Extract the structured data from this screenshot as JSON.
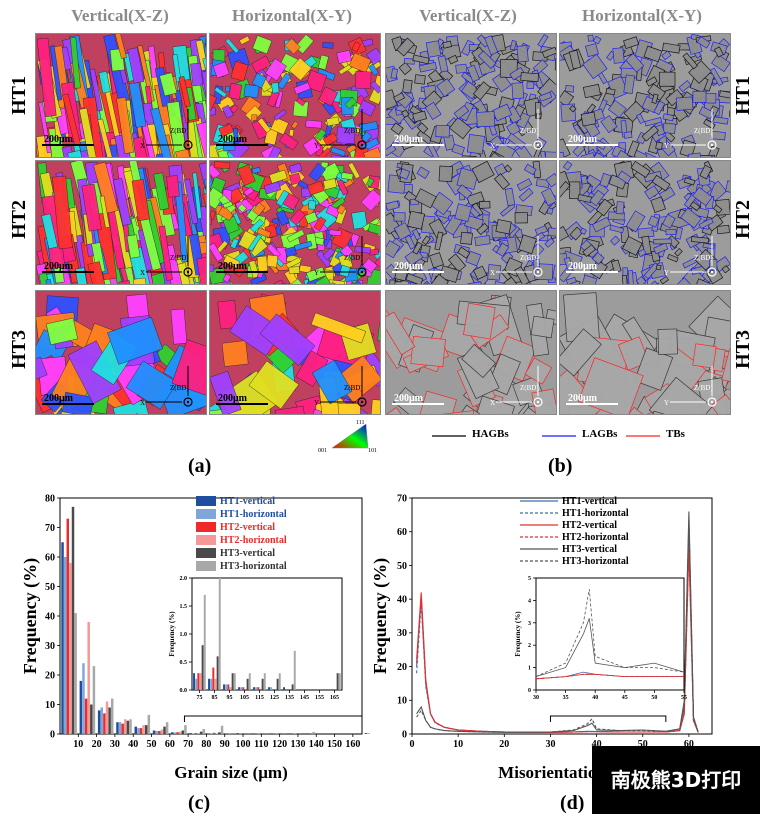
{
  "figure": {
    "col_titles": [
      "Vertical(X-Z)",
      "Horizontal(X-Y)",
      "Vertical(X-Z)",
      "Horizontal(X-Y)"
    ],
    "row_labels": [
      "HT1",
      "HT2",
      "HT3"
    ],
    "scale_bar": "200μm",
    "axis_tag": "Z(BD)",
    "axis_x": "X",
    "axis_y": "Y",
    "ipf_key": {
      "top": "111",
      "left": "001",
      "right": "101"
    },
    "boundary_legend": [
      {
        "label": "HAGBs",
        "color": "#000000"
      },
      {
        "label": "LAGBs",
        "color": "#1a1aff"
      },
      {
        "label": "TBs",
        "color": "#ff2020"
      }
    ],
    "panel_labels": [
      "(a)",
      "(b)",
      "(c)",
      "(d)"
    ]
  },
  "chart_data": [
    {
      "type": "bar",
      "id": "c",
      "xlabel": "Grain size (μm)",
      "ylabel": "Frequency (%)",
      "xlim": [
        0,
        165
      ],
      "ylim": [
        0,
        80
      ],
      "xticks": [
        10,
        20,
        30,
        40,
        50,
        60,
        70,
        80,
        90,
        100,
        110,
        120,
        130,
        140,
        150,
        160
      ],
      "yticks": [
        0,
        10,
        20,
        30,
        40,
        50,
        60,
        70,
        80
      ],
      "categories": [
        5,
        15,
        25,
        35,
        45,
        55,
        65,
        75,
        85,
        95,
        105,
        115,
        125,
        135,
        145,
        155,
        165
      ],
      "series": [
        {
          "name": "HT1-vertical",
          "color": "#1f4e9e",
          "values": [
            65,
            18,
            8,
            4,
            2.5,
            1.2,
            0.6,
            0.3,
            0.2,
            0.1,
            0.05,
            0.05,
            0.05,
            0.05,
            0,
            0,
            0
          ]
        },
        {
          "name": "HT1-horizontal",
          "color": "#7fa6d8",
          "values": [
            60,
            24,
            9,
            4,
            2,
            1,
            0.5,
            0.2,
            0.2,
            0.1,
            0.05,
            0.05,
            0.05,
            0,
            0,
            0,
            0
          ]
        },
        {
          "name": "HT2-vertical",
          "color": "#ee2a2a",
          "values": [
            73,
            12,
            7,
            3.5,
            2,
            1,
            0.6,
            0.3,
            0.4,
            0.1,
            0.05,
            0.05,
            0,
            0,
            0,
            0,
            0
          ]
        },
        {
          "name": "HT2-horizontal",
          "color": "#f59898",
          "values": [
            58,
            38,
            11,
            5,
            3,
            1.5,
            0.8,
            0.3,
            0.2,
            0.05,
            0,
            0,
            0,
            0,
            0,
            0,
            0
          ]
        },
        {
          "name": "HT3-vertical",
          "color": "#4a4a4a",
          "values": [
            77,
            10,
            9,
            4.5,
            3,
            2.5,
            1.2,
            0.8,
            0.6,
            0.3,
            0.2,
            0.2,
            0.2,
            0.1,
            0,
            0,
            0.3
          ]
        },
        {
          "name": "HT3-horizontal",
          "color": "#a8a8a8",
          "values": [
            41,
            23,
            12,
            5,
            6.5,
            4,
            3,
            1.7,
            2.8,
            0.3,
            0.3,
            0.3,
            0.3,
            0.7,
            0,
            0,
            0.3
          ]
        }
      ],
      "inset": {
        "ylabel": "Frequency (%)",
        "xlim": [
          70,
          170
        ],
        "ylim": [
          0,
          2.0
        ],
        "xticks": [
          75,
          85,
          95,
          105,
          115,
          125,
          135,
          145,
          155,
          165
        ],
        "yticks": [
          0.0,
          0.5,
          1.0,
          1.5,
          2.0
        ]
      }
    },
    {
      "type": "line",
      "id": "d",
      "xlabel": "Misorientation",
      "ylabel": "Frequency (%)",
      "xlim": [
        0,
        65
      ],
      "ylim": [
        0,
        70
      ],
      "xticks": [
        0,
        10,
        20,
        30,
        40,
        50,
        60
      ],
      "yticks": [
        0,
        10,
        20,
        30,
        40,
        50,
        60,
        70
      ],
      "series": [
        {
          "name": "HT1-vertical",
          "color": "#3a6fb0",
          "dash": "",
          "x": [
            1,
            2,
            3,
            4,
            5,
            7,
            10,
            15,
            20,
            30,
            35,
            38,
            40,
            45,
            50,
            55,
            58,
            59,
            60,
            61,
            62
          ],
          "y": [
            20,
            41,
            15,
            6,
            3.5,
            2,
            1.2,
            0.8,
            0.6,
            0.5,
            0.6,
            0.8,
            0.7,
            0.6,
            0.6,
            0.6,
            1,
            8,
            62,
            4,
            0.5
          ]
        },
        {
          "name": "HT1-horizontal",
          "color": "#3a6fb0",
          "dash": "3,2",
          "x": [
            1,
            2,
            3,
            4,
            5,
            7,
            10,
            15,
            20,
            30,
            35,
            38,
            40,
            45,
            50,
            55,
            58,
            59,
            60,
            61,
            62
          ],
          "y": [
            18,
            39,
            14,
            6,
            3.3,
            2,
            1.2,
            0.8,
            0.6,
            0.5,
            0.6,
            0.7,
            0.7,
            0.6,
            0.6,
            0.6,
            1,
            7,
            60,
            4,
            0.5
          ]
        },
        {
          "name": "HT2-vertical",
          "color": "#e03030",
          "dash": "",
          "x": [
            1,
            2,
            3,
            4,
            5,
            7,
            10,
            15,
            20,
            30,
            35,
            38,
            40,
            45,
            50,
            55,
            58,
            59,
            60,
            61,
            62
          ],
          "y": [
            22,
            42,
            16,
            6,
            3.5,
            2,
            1.2,
            0.8,
            0.6,
            0.5,
            0.6,
            0.7,
            0.7,
            0.6,
            0.6,
            0.6,
            1,
            6,
            55,
            4,
            0.5
          ]
        },
        {
          "name": "HT2-horizontal",
          "color": "#e03030",
          "dash": "3,2",
          "x": [
            1,
            2,
            3,
            4,
            5,
            7,
            10,
            15,
            20,
            30,
            35,
            38,
            40,
            45,
            50,
            55,
            58,
            59,
            60,
            61,
            62
          ],
          "y": [
            21,
            40,
            15,
            6,
            3.4,
            2,
            1.2,
            0.8,
            0.6,
            0.5,
            0.6,
            0.7,
            0.7,
            0.6,
            0.6,
            0.6,
            1,
            6,
            56,
            4,
            0.5
          ]
        },
        {
          "name": "HT3-vertical",
          "color": "#555555",
          "dash": "",
          "x": [
            1,
            2,
            3,
            4,
            5,
            7,
            10,
            15,
            20,
            30,
            35,
            38,
            39,
            40,
            45,
            50,
            55,
            58,
            59,
            60,
            61,
            62
          ],
          "y": [
            6,
            8,
            4,
            2,
            1.5,
            1,
            0.8,
            0.6,
            0.5,
            0.6,
            1,
            2.5,
            3.2,
            1.2,
            1,
            1.2,
            0.8,
            1.5,
            10,
            66,
            5,
            0.5
          ]
        },
        {
          "name": "HT3-horizontal",
          "color": "#555555",
          "dash": "3,2",
          "x": [
            1,
            2,
            3,
            4,
            5,
            7,
            10,
            15,
            20,
            30,
            35,
            38,
            39,
            40,
            45,
            50,
            55,
            58,
            59,
            60,
            61,
            62
          ],
          "y": [
            5,
            7,
            4,
            2,
            1.5,
            1,
            0.8,
            0.6,
            0.5,
            0.6,
            1.2,
            3,
            4.5,
            1.5,
            1,
            1,
            0.8,
            1.5,
            9,
            64,
            5,
            0.5
          ]
        }
      ],
      "inset": {
        "ylabel": "Frequency (%)",
        "xlim": [
          30,
          55
        ],
        "ylim": [
          0,
          5
        ],
        "xticks": [
          30,
          35,
          40,
          45,
          50,
          55
        ],
        "yticks": [
          0,
          1,
          2,
          3,
          4,
          5
        ]
      }
    }
  ],
  "watermark": "南极熊3D打印"
}
